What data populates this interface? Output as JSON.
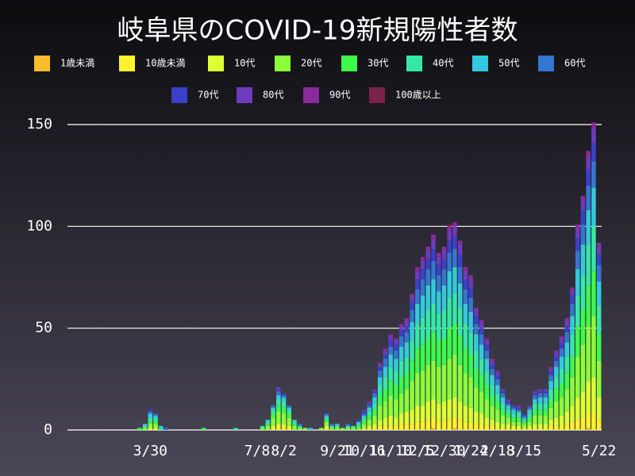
{
  "chart_data": {
    "type": "stacked_bar",
    "title": "岐阜県のCOVID-19新規陽性者数",
    "categories": [
      null,
      null,
      "3/30",
      null,
      null,
      null,
      null,
      null,
      null,
      null,
      null,
      null,
      null,
      null,
      null,
      null,
      null,
      null,
      null,
      null,
      null,
      null,
      "7/8",
      null,
      null,
      null,
      null,
      "8/2",
      null,
      null,
      null,
      null,
      null,
      null,
      null,
      null,
      null,
      "9/21",
      null,
      null,
      null,
      null,
      "10/16",
      null,
      null,
      null,
      null,
      "11/10",
      null,
      null,
      null,
      null,
      "12/5",
      null,
      null,
      null,
      null,
      "12/30",
      null,
      null,
      null,
      null,
      "1/24",
      null,
      null,
      null,
      null,
      "2/18",
      null,
      null,
      null,
      null,
      "3/15",
      null,
      null,
      null,
      null,
      null,
      null,
      null,
      null,
      null,
      null,
      null,
      null,
      null,
      "5/22"
    ],
    "series": [
      {
        "name": "1歳未満",
        "color": "#fbbc2c",
        "values": [
          0,
          0,
          0,
          0,
          0,
          0,
          0,
          0,
          0,
          0,
          0,
          0,
          0,
          0,
          0,
          0,
          0,
          0,
          0,
          0,
          0,
          0,
          0,
          0,
          0,
          0,
          0,
          0,
          0,
          0,
          0,
          0,
          0,
          0,
          0,
          0,
          0,
          0,
          0,
          0,
          0,
          0,
          0,
          0,
          0,
          0,
          0,
          0,
          0,
          0,
          0,
          0,
          0,
          0,
          0,
          1,
          0,
          0,
          0,
          1,
          0,
          0,
          0,
          0,
          0,
          0,
          0,
          0,
          0,
          0,
          0,
          0,
          0,
          0,
          0,
          0,
          0,
          0,
          0,
          0,
          0,
          0,
          0,
          0,
          1,
          0,
          0
        ]
      },
      {
        "name": "10歳未満",
        "color": "#fff12c",
        "values": [
          0,
          0,
          0,
          0,
          0,
          0,
          0,
          0,
          0,
          0,
          0,
          0,
          0,
          0,
          0,
          0,
          0,
          0,
          0,
          0,
          0,
          0,
          0,
          0,
          0,
          1,
          1,
          1,
          1,
          0,
          0,
          0,
          0,
          0,
          0,
          1,
          0,
          0,
          0,
          0,
          0,
          0,
          0,
          1,
          1,
          2,
          2,
          2,
          2,
          3,
          3,
          3,
          4,
          4,
          5,
          5,
          4,
          5,
          5,
          5,
          5,
          4,
          4,
          3,
          3,
          2,
          2,
          1,
          1,
          1,
          1,
          1,
          0,
          1,
          1,
          1,
          1,
          2,
          2,
          2,
          3,
          4,
          5,
          6,
          7,
          8,
          5
        ]
      },
      {
        "name": "10代",
        "color": "#dcff33",
        "values": [
          0,
          0,
          1,
          1,
          0,
          0,
          0,
          0,
          0,
          0,
          0,
          0,
          0,
          0,
          0,
          0,
          0,
          0,
          0,
          0,
          0,
          0,
          0,
          0,
          0,
          1,
          2,
          2,
          1,
          0,
          0,
          0,
          0,
          0,
          0,
          1,
          0,
          0,
          0,
          0,
          0,
          0,
          1,
          1,
          2,
          3,
          4,
          5,
          4,
          5,
          6,
          7,
          8,
          8,
          9,
          9,
          9,
          9,
          10,
          10,
          9,
          8,
          7,
          6,
          5,
          4,
          3,
          3,
          2,
          2,
          1,
          1,
          1,
          1,
          2,
          2,
          2,
          3,
          4,
          5,
          6,
          8,
          11,
          13,
          16,
          18,
          11
        ]
      },
      {
        "name": "20代",
        "color": "#8aff3a",
        "values": [
          0,
          1,
          2,
          2,
          0,
          0,
          0,
          0,
          0,
          0,
          0,
          0,
          0,
          0,
          0,
          0,
          0,
          0,
          0,
          0,
          0,
          0,
          0,
          1,
          2,
          4,
          6,
          5,
          4,
          2,
          1,
          1,
          0,
          0,
          1,
          2,
          1,
          1,
          1,
          1,
          1,
          1,
          2,
          3,
          4,
          7,
          8,
          10,
          9,
          10,
          11,
          14,
          16,
          17,
          18,
          19,
          18,
          18,
          20,
          21,
          18,
          16,
          15,
          12,
          11,
          9,
          7,
          6,
          4,
          3,
          2,
          2,
          2,
          2,
          4,
          4,
          4,
          6,
          8,
          9,
          11,
          14,
          20,
          23,
          27,
          30,
          18
        ]
      },
      {
        "name": "30代",
        "color": "#3dfa4a",
        "values": [
          1,
          0,
          1,
          1,
          0,
          0,
          0,
          0,
          0,
          0,
          0,
          0,
          1,
          0,
          0,
          0,
          0,
          0,
          0,
          0,
          0,
          0,
          0,
          0,
          1,
          2,
          3,
          3,
          2,
          1,
          0,
          0,
          0,
          0,
          0,
          1,
          0,
          1,
          0,
          0,
          0,
          1,
          2,
          2,
          3,
          5,
          6,
          7,
          7,
          8,
          8,
          10,
          12,
          13,
          13,
          14,
          13,
          13,
          15,
          15,
          14,
          12,
          11,
          9,
          8,
          7,
          5,
          4,
          3,
          2,
          2,
          2,
          1,
          2,
          3,
          3,
          3,
          4,
          6,
          7,
          8,
          10,
          15,
          17,
          20,
          22,
          13
        ]
      },
      {
        "name": "40代",
        "color": "#36e8a6",
        "values": [
          0,
          1,
          2,
          2,
          1,
          0,
          0,
          0,
          0,
          0,
          0,
          0,
          0,
          0,
          0,
          0,
          0,
          0,
          1,
          0,
          0,
          0,
          0,
          1,
          1,
          2,
          3,
          3,
          2,
          1,
          1,
          0,
          0,
          0,
          0,
          1,
          1,
          0,
          0,
          1,
          1,
          1,
          1,
          2,
          3,
          5,
          6,
          7,
          7,
          8,
          8,
          10,
          12,
          13,
          14,
          14,
          13,
          14,
          15,
          15,
          14,
          12,
          11,
          9,
          8,
          7,
          5,
          4,
          3,
          2,
          2,
          2,
          1,
          2,
          3,
          3,
          3,
          5,
          6,
          7,
          8,
          11,
          15,
          17,
          20,
          22,
          14
        ]
      },
      {
        "name": "50代",
        "color": "#33c9dc",
        "values": [
          0,
          1,
          2,
          1,
          1,
          0,
          0,
          0,
          0,
          0,
          0,
          0,
          0,
          0,
          0,
          0,
          0,
          0,
          0,
          0,
          0,
          0,
          0,
          0,
          1,
          1,
          2,
          2,
          1,
          1,
          0,
          0,
          1,
          0,
          0,
          1,
          0,
          1,
          0,
          0,
          0,
          1,
          1,
          2,
          3,
          4,
          5,
          6,
          6,
          7,
          7,
          9,
          10,
          11,
          12,
          12,
          11,
          12,
          13,
          13,
          12,
          10,
          10,
          8,
          7,
          6,
          5,
          4,
          3,
          2,
          2,
          1,
          1,
          2,
          2,
          3,
          3,
          4,
          5,
          6,
          7,
          9,
          13,
          15,
          17,
          19,
          12
        ]
      },
      {
        "name": "60代",
        "color": "#3576d2",
        "values": [
          0,
          0,
          1,
          1,
          0,
          1,
          0,
          0,
          0,
          0,
          0,
          0,
          0,
          0,
          0,
          0,
          0,
          0,
          0,
          0,
          0,
          0,
          0,
          0,
          0,
          1,
          2,
          1,
          1,
          0,
          1,
          0,
          0,
          0,
          0,
          1,
          1,
          0,
          0,
          1,
          0,
          0,
          1,
          1,
          2,
          3,
          4,
          4,
          4,
          5,
          5,
          6,
          7,
          8,
          8,
          9,
          8,
          8,
          9,
          9,
          8,
          7,
          7,
          5,
          5,
          4,
          3,
          3,
          2,
          1,
          1,
          1,
          1,
          1,
          2,
          2,
          2,
          3,
          3,
          4,
          5,
          6,
          9,
          10,
          12,
          13,
          8
        ]
      },
      {
        "name": "70代",
        "color": "#3b3fc9",
        "values": [
          0,
          0,
          1,
          0,
          0,
          0,
          0,
          0,
          0,
          0,
          0,
          0,
          0,
          0,
          0,
          0,
          0,
          0,
          0,
          0,
          0,
          0,
          0,
          0,
          0,
          0,
          1,
          1,
          0,
          0,
          0,
          0,
          0,
          0,
          0,
          0,
          0,
          0,
          0,
          0,
          0,
          1,
          1,
          1,
          1,
          2,
          2,
          3,
          3,
          3,
          3,
          4,
          5,
          5,
          5,
          6,
          5,
          5,
          6,
          6,
          6,
          5,
          5,
          4,
          3,
          3,
          2,
          2,
          1,
          1,
          1,
          1,
          1,
          0,
          1,
          1,
          1,
          2,
          2,
          3,
          3,
          4,
          6,
          7,
          8,
          9,
          5
        ]
      },
      {
        "name": "80代",
        "color": "#6d3bbb",
        "values": [
          0,
          0,
          0,
          0,
          0,
          0,
          0,
          0,
          0,
          0,
          0,
          0,
          0,
          0,
          0,
          0,
          0,
          0,
          0,
          0,
          0,
          0,
          0,
          0,
          0,
          0,
          1,
          0,
          0,
          0,
          0,
          0,
          0,
          0,
          0,
          0,
          0,
          0,
          0,
          0,
          0,
          0,
          1,
          1,
          1,
          1,
          2,
          2,
          2,
          2,
          3,
          3,
          4,
          4,
          4,
          5,
          4,
          4,
          5,
          5,
          5,
          4,
          4,
          3,
          3,
          2,
          2,
          1,
          1,
          1,
          0,
          1,
          0,
          1,
          1,
          1,
          1,
          1,
          2,
          2,
          3,
          3,
          5,
          5,
          6,
          7,
          4
        ]
      },
      {
        "name": "90代",
        "color": "#8a2a9c",
        "values": [
          0,
          0,
          0,
          0,
          0,
          0,
          0,
          0,
          0,
          0,
          0,
          0,
          0,
          0,
          0,
          0,
          0,
          0,
          0,
          0,
          0,
          0,
          0,
          0,
          0,
          0,
          0,
          0,
          0,
          0,
          0,
          0,
          0,
          0,
          0,
          0,
          0,
          0,
          0,
          0,
          0,
          0,
          0,
          0,
          0,
          1,
          1,
          1,
          1,
          1,
          1,
          1,
          2,
          2,
          2,
          2,
          2,
          2,
          2,
          2,
          2,
          2,
          2,
          1,
          1,
          1,
          1,
          1,
          0,
          0,
          0,
          0,
          0,
          0,
          0,
          0,
          0,
          1,
          1,
          1,
          1,
          1,
          2,
          2,
          3,
          3,
          2
        ]
      },
      {
        "name": "100歳以上",
        "color": "#7a2249",
        "values": [
          0,
          0,
          0,
          0,
          0,
          0,
          0,
          0,
          0,
          0,
          0,
          0,
          0,
          0,
          0,
          0,
          0,
          0,
          0,
          0,
          0,
          0,
          0,
          0,
          0,
          0,
          0,
          0,
          0,
          0,
          0,
          0,
          0,
          0,
          0,
          0,
          0,
          0,
          0,
          0,
          0,
          0,
          0,
          0,
          0,
          0,
          0,
          0,
          0,
          0,
          0,
          0,
          0,
          0,
          0,
          0,
          0,
          0,
          1,
          0,
          0,
          0,
          0,
          0,
          0,
          0,
          0,
          0,
          0,
          0,
          0,
          0,
          0,
          0,
          0,
          0,
          0,
          0,
          0,
          0,
          0,
          0,
          0,
          0,
          0,
          0,
          0
        ]
      }
    ],
    "ylim": [
      0,
      150
    ],
    "yticks": [
      0,
      50,
      100,
      150
    ],
    "grid": true,
    "legend": "top"
  }
}
